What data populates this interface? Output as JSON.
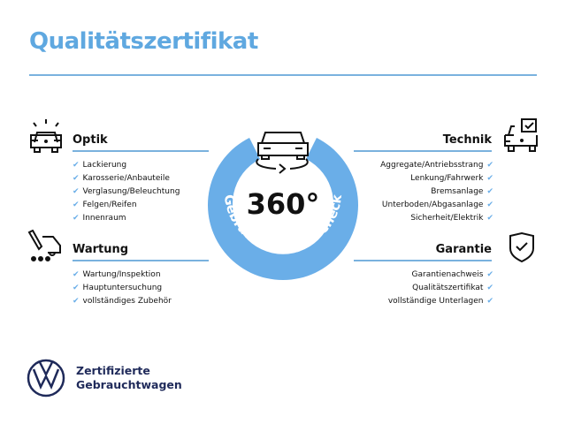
{
  "title": "Qualitätszertifikat",
  "ring": {
    "center_text": "360°",
    "arc_text": "Gebrauchtwagen-Check",
    "color": "#6aaee8"
  },
  "sections": {
    "optik": {
      "heading": "Optik",
      "items": [
        "Lackierung",
        "Karosserie/Anbauteile",
        "Verglasung/Beleuchtung",
        "Felgen/Reifen",
        "Innenraum"
      ]
    },
    "wartung": {
      "heading": "Wartung",
      "items": [
        "Wartung/Inspektion",
        "Hauptuntersuchung",
        "vollständiges Zubehör"
      ]
    },
    "technik": {
      "heading": "Technik",
      "items": [
        "Aggregate/Antriebsstrang",
        "Lenkung/Fahrwerk",
        "Bremsanlage",
        "Unterboden/Abgasanlage",
        "Sicherheit/Elektrik"
      ]
    },
    "garantie": {
      "heading": "Garantie",
      "items": [
        "Garantienachweis",
        "Qualitätszertifikat",
        "vollständige Unterlagen"
      ]
    }
  },
  "brand": {
    "line1": "Zertifizierte",
    "line2": "Gebrauchtwagen",
    "color": "#1f2a5a"
  }
}
